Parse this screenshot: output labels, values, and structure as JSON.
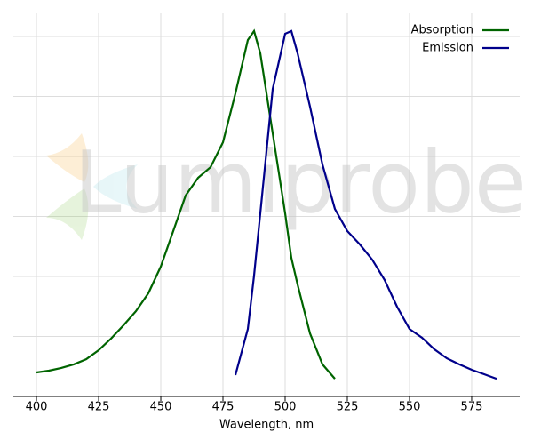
{
  "chart_data": {
    "type": "line",
    "watermark": "Lumiprobe",
    "xlabel": "Wavelength, nm",
    "x": [
      400,
      405,
      410,
      415,
      420,
      425,
      430,
      435,
      440,
      445,
      450,
      455,
      460,
      465,
      470,
      475,
      480,
      485,
      487.5,
      490,
      495,
      500,
      502.5,
      505,
      510,
      515,
      520,
      525,
      530,
      535,
      540,
      545,
      550,
      555,
      560,
      565,
      570,
      575,
      580,
      585
    ],
    "series": [
      {
        "name": "Absorption",
        "color": "#006400",
        "values": [
          0.08,
          0.086,
          0.095,
          0.107,
          0.124,
          0.154,
          0.193,
          0.237,
          0.284,
          0.344,
          0.433,
          0.551,
          0.67,
          0.729,
          0.764,
          0.847,
          1.01,
          1.188,
          1.218,
          1.144,
          0.877,
          0.61,
          0.462,
          0.373,
          0.21,
          0.107,
          0.059,
          null,
          null,
          null,
          null,
          null,
          null,
          null,
          null,
          null,
          null,
          null,
          null,
          null
        ]
      },
      {
        "name": "Emission",
        "color": "#00008b",
        "values": [
          null,
          null,
          null,
          null,
          null,
          null,
          null,
          null,
          null,
          null,
          null,
          null,
          null,
          null,
          null,
          null,
          0.071,
          0.225,
          0.403,
          0.61,
          1.025,
          1.209,
          1.218,
          1.144,
          0.966,
          0.773,
          0.625,
          0.551,
          0.507,
          0.456,
          0.388,
          0.299,
          0.225,
          0.196,
          0.157,
          0.127,
          0.107,
          0.089,
          0.074,
          0.059
        ]
      }
    ],
    "xlim": [
      390.7,
      594.3
    ],
    "xticks": [
      400,
      425,
      450,
      475,
      500,
      525,
      550,
      575
    ],
    "ylim": [
      0,
      1.277
    ],
    "yticks": [
      0.2,
      0.4,
      0.6,
      0.8,
      1.0,
      1.2
    ],
    "ytick_labels": false,
    "grid": true,
    "legend": "upper right"
  }
}
